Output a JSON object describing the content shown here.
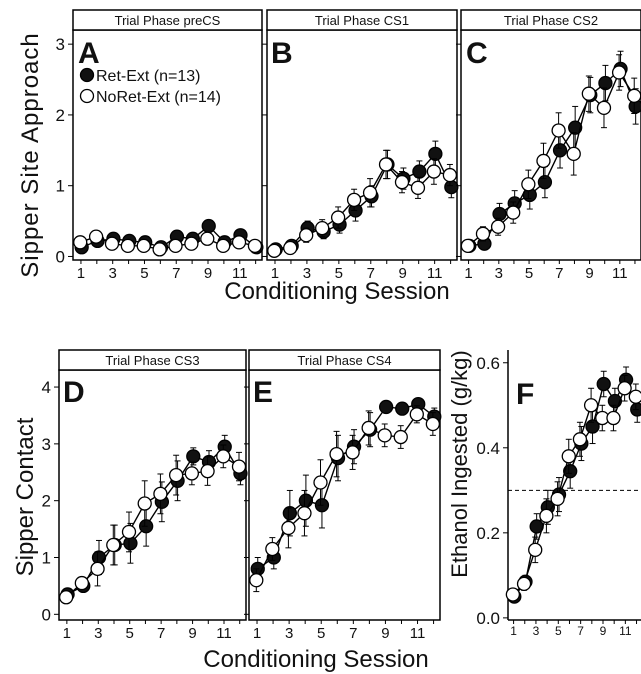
{
  "figure": {
    "top_xlabel": "Conditioning Session",
    "top_ylabel": "Sipper Site Approach",
    "bottom_xlabel": "Conditioning Session",
    "bottom_ylabel_de": "Sipper Contact",
    "bottom_ylabel_f": "Ethanol Ingested (g/kg)"
  },
  "chart_data": [
    {
      "type": "line",
      "panel_letter": "A",
      "title": "Trial Phase preCS",
      "xlabel": "Conditioning Session",
      "ylabel": "Sipper Site Approach",
      "x": [
        1,
        2,
        3,
        4,
        5,
        6,
        7,
        8,
        9,
        10,
        11,
        12
      ],
      "xticks": [
        1,
        3,
        5,
        7,
        9,
        11
      ],
      "yticks": [
        0,
        1,
        2,
        3
      ],
      "ylim": [
        -0.05,
        3.2
      ],
      "legend": [
        "Ret-Ext (n=13)",
        "NoRet-Ext (n=14)"
      ],
      "series": [
        {
          "name": "Ret-Ext (n=13)",
          "values": [
            0.13,
            0.22,
            0.25,
            0.22,
            0.2,
            0.13,
            0.28,
            0.25,
            0.43,
            0.2,
            0.3,
            0.13
          ],
          "errors": [
            0.06,
            0.06,
            0.06,
            0.06,
            0.06,
            0.05,
            0.08,
            0.07,
            0.08,
            0.07,
            0.08,
            0.05
          ]
        },
        {
          "name": "NoRet-Ext (n=14)",
          "values": [
            0.2,
            0.28,
            0.18,
            0.15,
            0.15,
            0.1,
            0.15,
            0.18,
            0.25,
            0.15,
            0.2,
            0.15
          ],
          "errors": [
            0.06,
            0.06,
            0.06,
            0.05,
            0.05,
            0.04,
            0.05,
            0.05,
            0.07,
            0.05,
            0.06,
            0.05
          ]
        }
      ]
    },
    {
      "type": "line",
      "panel_letter": "B",
      "title": "Trial Phase CS1",
      "x": [
        1,
        2,
        3,
        4,
        5,
        6,
        7,
        8,
        9,
        10,
        11,
        12
      ],
      "xticks": [
        1,
        3,
        5,
        7,
        9,
        11
      ],
      "ylim": [
        -0.05,
        3.2
      ],
      "series": [
        {
          "name": "Ret-Ext (n=13)",
          "values": [
            0.1,
            0.15,
            0.4,
            0.35,
            0.45,
            0.65,
            0.85,
            1.3,
            1.1,
            1.2,
            1.45,
            0.98
          ],
          "errors": [
            0.05,
            0.06,
            0.1,
            0.1,
            0.12,
            0.15,
            0.15,
            0.2,
            0.15,
            0.15,
            0.18,
            0.15
          ]
        },
        {
          "name": "NoRet-Ext (n=14)",
          "values": [
            0.08,
            0.12,
            0.3,
            0.4,
            0.55,
            0.8,
            0.9,
            1.3,
            1.05,
            0.97,
            1.2,
            1.15
          ],
          "errors": [
            0.05,
            0.06,
            0.1,
            0.12,
            0.15,
            0.15,
            0.2,
            0.2,
            0.15,
            0.15,
            0.18,
            0.15
          ]
        }
      ]
    },
    {
      "type": "line",
      "panel_letter": "C",
      "title": "Trial Phase CS2",
      "x": [
        1,
        2,
        3,
        4,
        5,
        6,
        7,
        8,
        9,
        10,
        11,
        12
      ],
      "xticks": [
        1,
        3,
        5,
        7,
        9,
        11
      ],
      "ylim": [
        -0.05,
        3.2
      ],
      "series": [
        {
          "name": "Ret-Ext (n=13)",
          "values": [
            0.15,
            0.18,
            0.6,
            0.75,
            0.87,
            1.05,
            1.5,
            1.82,
            2.28,
            2.45,
            2.65,
            2.12
          ],
          "errors": [
            0.06,
            0.06,
            0.15,
            0.18,
            0.2,
            0.22,
            0.25,
            0.3,
            0.25,
            0.25,
            0.25,
            0.25
          ]
        },
        {
          "name": "NoRet-Ext (n=14)",
          "values": [
            0.15,
            0.32,
            0.42,
            0.62,
            1.02,
            1.35,
            1.78,
            1.45,
            2.3,
            2.1,
            2.6,
            2.27
          ],
          "errors": [
            0.06,
            0.1,
            0.12,
            0.15,
            0.2,
            0.25,
            0.25,
            0.3,
            0.25,
            0.28,
            0.25,
            0.25
          ]
        }
      ]
    },
    {
      "type": "line",
      "panel_letter": "D",
      "title": "Trial Phase CS3",
      "xlabel": "Conditioning Session",
      "ylabel": "Sipper Contact",
      "x": [
        1,
        2,
        3,
        4,
        5,
        6,
        7,
        8,
        9,
        10,
        11,
        12
      ],
      "xticks": [
        1,
        3,
        5,
        7,
        9,
        11
      ],
      "yticks": [
        0,
        1,
        2,
        3,
        4
      ],
      "ylim": [
        -0.1,
        4.3
      ],
      "series": [
        {
          "name": "Ret-Ext (n=13)",
          "values": [
            0.35,
            0.5,
            1.0,
            1.22,
            1.25,
            1.55,
            1.98,
            2.35,
            2.78,
            2.68,
            2.95,
            2.48
          ],
          "errors": [
            0.08,
            0.1,
            0.3,
            0.35,
            0.35,
            0.35,
            0.35,
            0.35,
            0.15,
            0.2,
            0.2,
            0.2
          ]
        },
        {
          "name": "NoRet-Ext (n=14)",
          "values": [
            0.3,
            0.55,
            0.8,
            1.22,
            1.45,
            1.95,
            2.12,
            2.45,
            2.48,
            2.52,
            2.78,
            2.6
          ],
          "errors": [
            0.08,
            0.1,
            0.3,
            0.35,
            0.35,
            0.4,
            0.35,
            0.35,
            0.2,
            0.25,
            0.2,
            0.25
          ]
        }
      ]
    },
    {
      "type": "line",
      "panel_letter": "E",
      "title": "Trial Phase CS4",
      "x": [
        1,
        2,
        3,
        4,
        5,
        6,
        7,
        8,
        9,
        10,
        11,
        12
      ],
      "xticks": [
        1,
        3,
        5,
        7,
        9,
        11
      ],
      "ylim": [
        -0.1,
        4.3
      ],
      "series": [
        {
          "name": "Ret-Ext (n=13)",
          "values": [
            0.8,
            1.0,
            1.78,
            2.0,
            1.92,
            2.75,
            2.95,
            3.25,
            3.65,
            3.62,
            3.7,
            3.48
          ],
          "errors": [
            0.2,
            0.2,
            0.4,
            0.45,
            0.4,
            0.4,
            0.3,
            0.3,
            0.1,
            0.1,
            0.1,
            0.15
          ]
        },
        {
          "name": "NoRet-Ext (n=14)",
          "values": [
            0.6,
            1.15,
            1.52,
            1.78,
            2.32,
            2.82,
            2.85,
            3.28,
            3.15,
            3.12,
            3.52,
            3.35
          ],
          "errors": [
            0.2,
            0.2,
            0.35,
            0.4,
            0.4,
            0.4,
            0.3,
            0.3,
            0.2,
            0.2,
            0.15,
            0.2
          ]
        }
      ]
    },
    {
      "type": "line",
      "panel_letter": "F",
      "xlabel": "Conditioning Session",
      "ylabel": "Ethanol Ingested (g/kg)",
      "x": [
        1,
        2,
        3,
        4,
        5,
        6,
        7,
        8,
        9,
        10,
        11,
        12
      ],
      "xticks": [
        1,
        3,
        5,
        7,
        9,
        11
      ],
      "yticks": [
        0.0,
        0.2,
        0.4,
        0.6
      ],
      "ytick_labels": [
        "0.0",
        "0.2",
        "0.4",
        "0.6"
      ],
      "ylim": [
        -0.005,
        0.63
      ],
      "reference_line": 0.3,
      "series": [
        {
          "name": "Ret-Ext (n=13)",
          "values": [
            0.05,
            0.085,
            0.215,
            0.26,
            0.29,
            0.345,
            0.41,
            0.45,
            0.55,
            0.51,
            0.56,
            0.49
          ],
          "errors": [
            0.01,
            0.015,
            0.03,
            0.04,
            0.04,
            0.04,
            0.04,
            0.04,
            0.03,
            0.03,
            0.03,
            0.03
          ]
        },
        {
          "name": "NoRet-Ext (n=14)",
          "values": [
            0.055,
            0.08,
            0.16,
            0.24,
            0.28,
            0.38,
            0.42,
            0.5,
            0.47,
            0.47,
            0.54,
            0.52
          ],
          "errors": [
            0.01,
            0.015,
            0.03,
            0.04,
            0.04,
            0.04,
            0.04,
            0.04,
            0.03,
            0.03,
            0.03,
            0.03
          ]
        }
      ]
    }
  ]
}
